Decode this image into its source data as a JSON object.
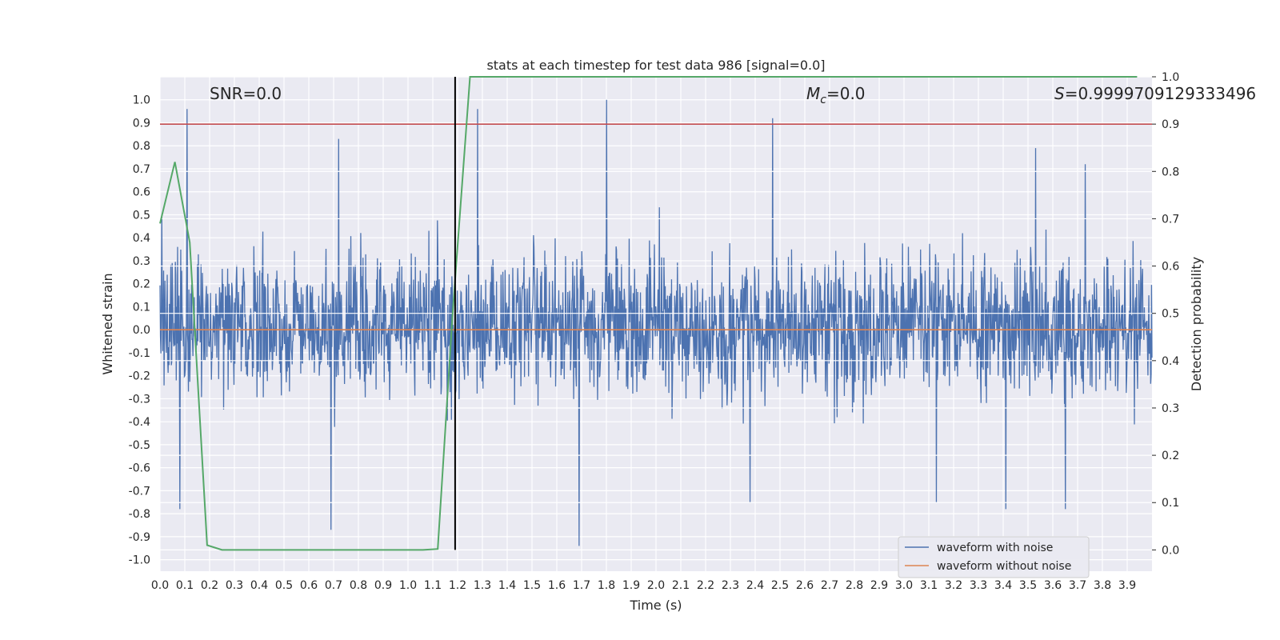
{
  "chart_data": {
    "type": "line",
    "title": "stats at each timestep for test data 986 [signal=0.0]",
    "xlabel": "Time (s)",
    "ylabel": "Whitened strain",
    "y2label": "Detection probability",
    "xlim": [
      0.0,
      4.0
    ],
    "ylim": [
      -1.05,
      1.1
    ],
    "y2lim": [
      -0.045,
      1.0
    ],
    "x_ticks": [
      0.0,
      0.1,
      0.2,
      0.3,
      0.4,
      0.5,
      0.6,
      0.7,
      0.8,
      0.9,
      1.0,
      1.1,
      1.2,
      1.3,
      1.4,
      1.5,
      1.6,
      1.7,
      1.8,
      1.9,
      2.0,
      2.1,
      2.2,
      2.3,
      2.4,
      2.5,
      2.6,
      2.7,
      2.8,
      2.9,
      3.0,
      3.1,
      3.2,
      3.3,
      3.4,
      3.5,
      3.6,
      3.7,
      3.8,
      3.9
    ],
    "y_ticks": [
      1.0,
      0.9,
      0.8,
      0.7,
      0.6,
      0.5,
      0.4,
      0.3,
      0.2,
      0.1,
      0.0,
      -0.1,
      -0.2,
      -0.3,
      -0.4,
      -0.5,
      -0.6,
      -0.7,
      -0.8,
      -0.9,
      -1.0
    ],
    "y2_ticks": [
      1.0,
      0.9,
      0.8,
      0.7,
      0.6,
      0.5,
      0.4,
      0.3,
      0.2,
      0.1,
      0.0
    ],
    "grid": true,
    "legend_position": "bottom-right",
    "annotations": {
      "snr": "SNR=0.0",
      "mc_symbol": "M",
      "mc_sub": "c",
      "mc_value": "=0.0",
      "s_symbol": "S",
      "s_value": "=0.9999709129333496"
    },
    "series": [
      {
        "name": "waveform with noise",
        "color": "#4c72b0",
        "axis": "left",
        "kind": "noise",
        "x_range": [
          0.0,
          4.0
        ],
        "amplitude": [
          -0.94,
          1.0
        ],
        "peaks": [
          [
            0.11,
            0.96
          ],
          [
            1.28,
            0.96
          ],
          [
            1.8,
            1.0
          ],
          [
            2.47,
            0.92
          ],
          [
            0.72,
            0.83
          ],
          [
            3.53,
            0.79
          ],
          [
            3.73,
            0.72
          ],
          [
            0.69,
            -0.87
          ],
          [
            1.69,
            -0.94
          ],
          [
            0.08,
            -0.78
          ],
          [
            3.65,
            -0.78
          ],
          [
            3.41,
            -0.78
          ],
          [
            3.13,
            -0.75
          ],
          [
            2.38,
            -0.75
          ]
        ]
      },
      {
        "name": "waveform without noise",
        "color": "#dd8452",
        "axis": "left",
        "x": [
          0.0,
          4.0
        ],
        "y": [
          0.0,
          0.0
        ]
      },
      {
        "name": "",
        "color": "#55a868",
        "axis": "right",
        "x": [
          0.0,
          0.06,
          0.12,
          0.19,
          0.25,
          0.5,
          0.75,
          1.0,
          1.06,
          1.12,
          1.18,
          1.25,
          1.5,
          2.0,
          2.5,
          3.0,
          3.5,
          3.94
        ],
        "y": [
          0.69,
          0.82,
          0.65,
          0.01,
          0.0,
          0.0,
          0.0,
          0.0,
          0.0,
          0.002,
          0.5,
          1.0,
          1.0,
          1.0,
          1.0,
          1.0,
          1.0,
          1.0
        ]
      },
      {
        "name": "",
        "color": "#c44e52",
        "axis": "right",
        "x": [
          0.0,
          4.0
        ],
        "y": [
          0.9,
          0.9
        ]
      }
    ],
    "vline": {
      "x": 1.19,
      "color": "#000000",
      "ymin_right": 0.0,
      "ymax_right": 1.0
    }
  }
}
